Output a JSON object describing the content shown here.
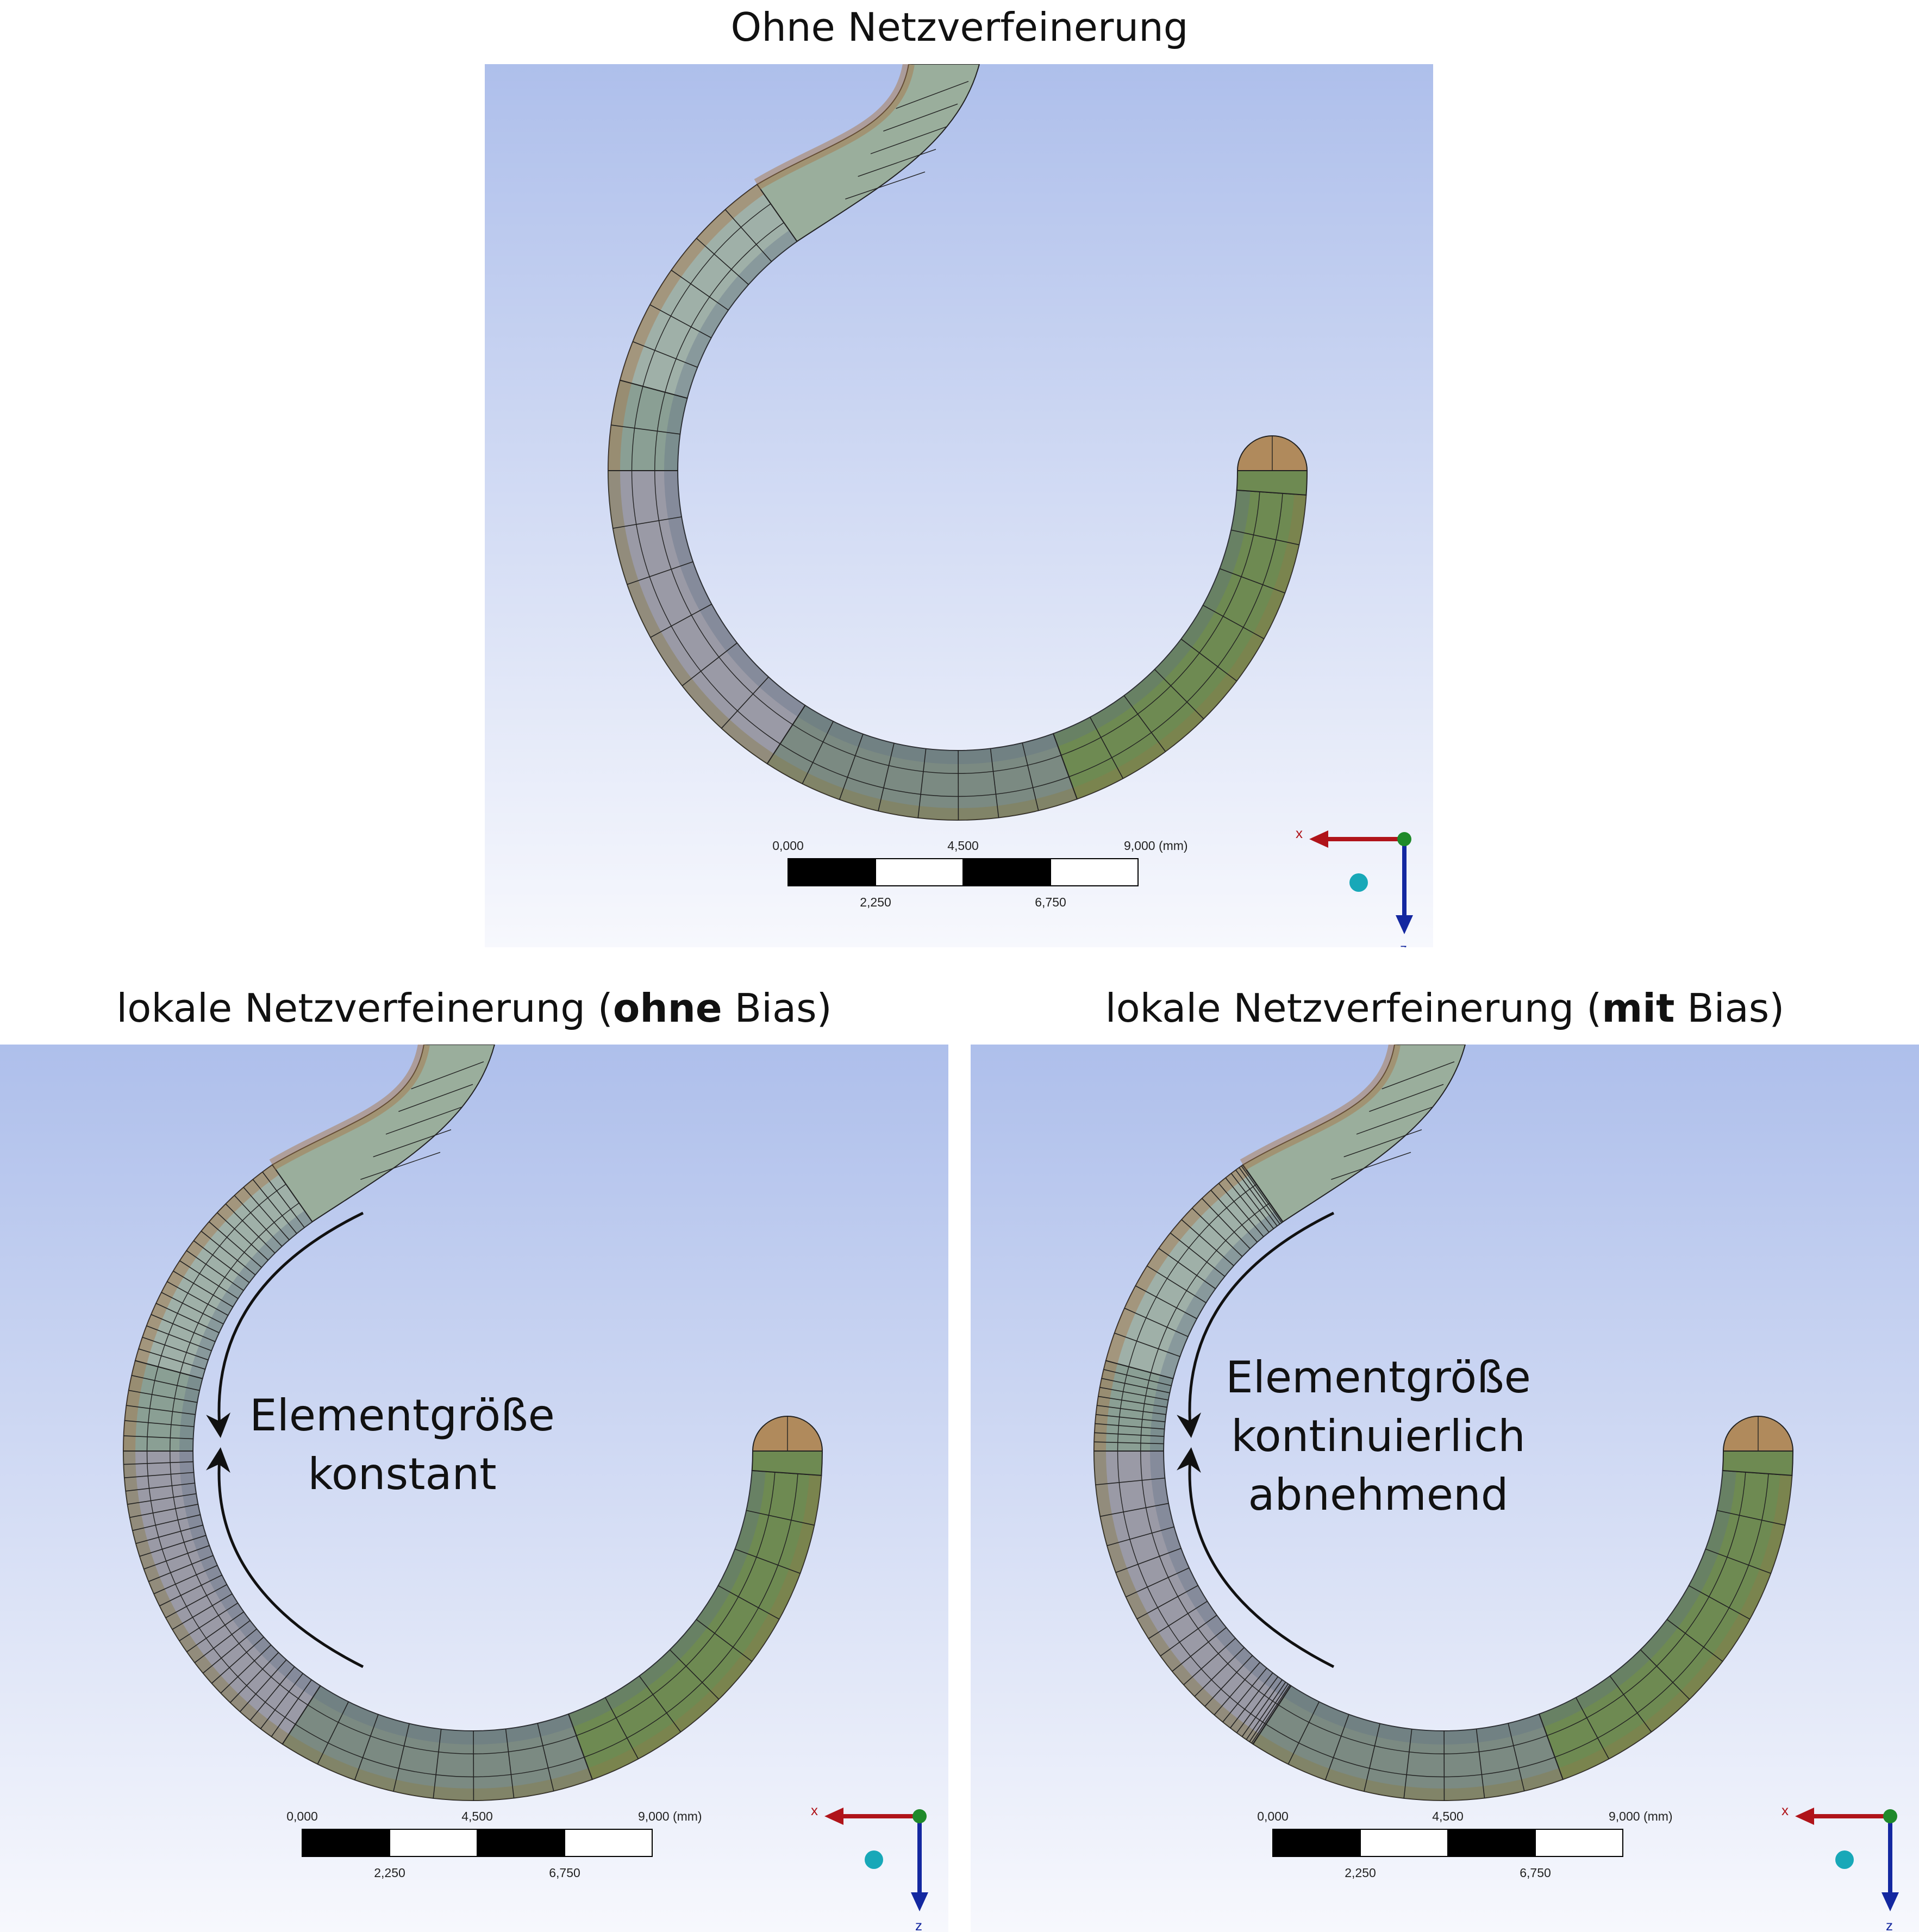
{
  "panels": {
    "top": {
      "title": "Ohne Netzverfeinerung",
      "scale": {
        "v0": "0,000",
        "v1": "2,250",
        "v2": "4,500",
        "v3": "6,750",
        "v4": "9,000",
        "unit": "(mm)"
      },
      "axes": {
        "h": "x",
        "v": "z"
      }
    },
    "left": {
      "title_pre": "lokale Netzverfeinerung (",
      "title_bold": "ohne",
      "title_post": " Bias)",
      "annotation": [
        "Elementgröße",
        "konstant"
      ],
      "scale": {
        "v0": "0,000",
        "v1": "2,250",
        "v2": "4,500",
        "v3": "6,750",
        "v4": "9,000",
        "unit": "(mm)"
      },
      "axes": {
        "h": "x",
        "v": "z"
      }
    },
    "right": {
      "title_pre": "lokale Netzverfeinerung (",
      "title_bold": "mit",
      "title_post": " Bias)",
      "annotation": [
        "Elementgröße",
        "kontinuierlich",
        "abnehmend"
      ],
      "scale": {
        "v0": "0,000",
        "v1": "2,250",
        "v2": "4,500",
        "v3": "6,750",
        "v4": "9,000",
        "unit": "(mm)"
      },
      "axes": {
        "h": "x",
        "v": "z"
      }
    }
  },
  "colors": {
    "bg_top": "#aebfeb",
    "bg_bottom": "#f7f8fd",
    "mesh_line": "#222222",
    "x_axis": "#b0141a",
    "z_axis": "#1428a0",
    "origin": "#1f8a2a",
    "sphere": "#18a8b8"
  }
}
